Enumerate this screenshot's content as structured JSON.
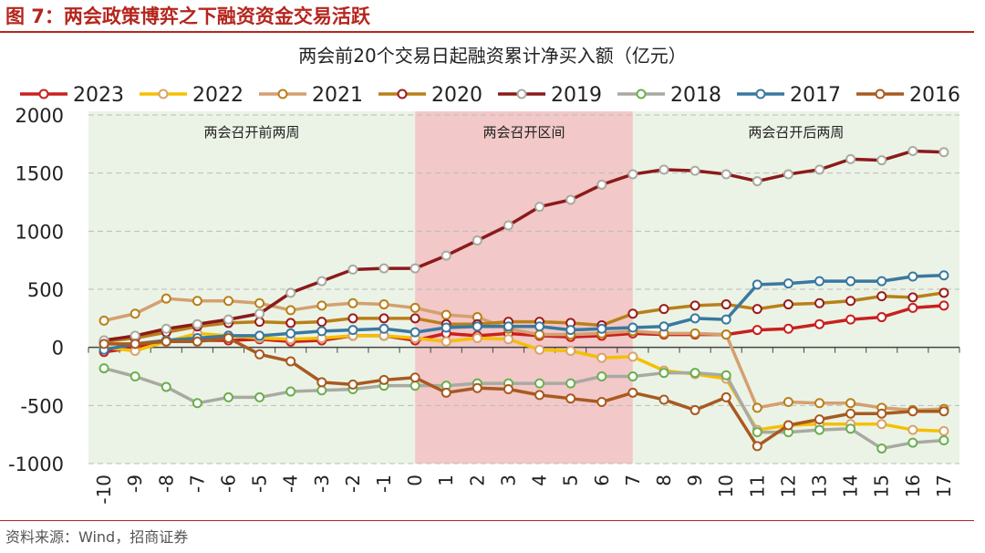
{
  "figure_title": "图 7：两会政策博弈之下融资资金交易活跃",
  "source": "资料来源：Wind，招商证券",
  "chart_data": {
    "type": "line",
    "title": "两会前20个交易日起融资累计净买入额（亿元）",
    "xlabel": "",
    "ylabel": "",
    "x": [
      -10,
      -9,
      -8,
      -7,
      -6,
      -5,
      -4,
      -3,
      -2,
      -1,
      0,
      1,
      2,
      3,
      4,
      5,
      6,
      7,
      8,
      9,
      10,
      11,
      12,
      13,
      14,
      15,
      16,
      17
    ],
    "ylim": [
      -1000,
      2000
    ],
    "yticks": [
      -1000,
      -500,
      0,
      500,
      1000,
      1500,
      2000
    ],
    "grid": true,
    "legend_position": "top",
    "regions": [
      {
        "label": "两会召开前两周",
        "from": -10.5,
        "to": 0,
        "color": "#ebf3e6"
      },
      {
        "label": "两会召开区间",
        "from": 0,
        "to": 7,
        "color": "#f2c8c8"
      },
      {
        "label": "两会召开后两周",
        "from": 7,
        "to": 17.5,
        "color": "#ebf3e6"
      }
    ],
    "series": [
      {
        "name": "2023",
        "color": "#c8201e",
        "marker": "#c8201e",
        "values": [
          -40,
          0,
          50,
          60,
          60,
          70,
          50,
          60,
          100,
          100,
          60,
          120,
          100,
          120,
          100,
          90,
          100,
          120,
          110,
          110,
          110,
          150,
          160,
          200,
          240,
          260,
          340,
          360
        ]
      },
      {
        "name": "2022",
        "color": "#f5c000",
        "marker": "#d9a36a",
        "values": [
          0,
          -30,
          50,
          120,
          100,
          80,
          70,
          80,
          100,
          100,
          80,
          50,
          80,
          70,
          -20,
          -30,
          -90,
          -80,
          -200,
          -230,
          -270,
          -710,
          -670,
          -660,
          -660,
          -660,
          -710,
          -720
        ]
      },
      {
        "name": "2021",
        "color": "#d4a070",
        "marker": "#b8801a",
        "values": [
          230,
          290,
          420,
          400,
          400,
          380,
          320,
          360,
          380,
          370,
          340,
          280,
          260,
          160,
          110,
          110,
          120,
          140,
          120,
          120,
          110,
          -520,
          -470,
          -480,
          -480,
          -520,
          -540,
          -530
        ]
      },
      {
        "name": "2020",
        "color": "#b8801a",
        "marker": "#9a1c1c",
        "values": [
          50,
          80,
          130,
          180,
          210,
          220,
          210,
          220,
          250,
          250,
          250,
          200,
          200,
          220,
          220,
          210,
          190,
          290,
          330,
          360,
          370,
          330,
          370,
          380,
          400,
          440,
          430,
          470
        ]
      },
      {
        "name": "2019",
        "color": "#8b1a1a",
        "marker": "#aaaaa0",
        "values": [
          60,
          100,
          160,
          200,
          240,
          290,
          470,
          570,
          670,
          680,
          680,
          790,
          920,
          1050,
          1210,
          1270,
          1400,
          1490,
          1530,
          1520,
          1490,
          1430,
          1490,
          1530,
          1620,
          1610,
          1690,
          1680
        ]
      },
      {
        "name": "2018",
        "color": "#a8aaa2",
        "marker": "#6ab04c",
        "values": [
          -180,
          -250,
          -340,
          -480,
          -430,
          -430,
          -380,
          -370,
          -360,
          -330,
          -330,
          -330,
          -310,
          -310,
          -310,
          -310,
          -250,
          -250,
          -220,
          -220,
          -240,
          -730,
          -730,
          -710,
          -700,
          -870,
          -820,
          -800
        ]
      },
      {
        "name": "2017",
        "color": "#3a78a0",
        "marker": "#3a78a0",
        "values": [
          -20,
          30,
          60,
          80,
          100,
          100,
          120,
          140,
          150,
          160,
          130,
          170,
          180,
          180,
          180,
          150,
          160,
          170,
          180,
          250,
          240,
          540,
          550,
          570,
          570,
          570,
          610,
          620
        ]
      },
      {
        "name": "2016",
        "color": "#a85a20",
        "marker": "#a85a20",
        "values": [
          30,
          30,
          50,
          50,
          80,
          -60,
          -120,
          -300,
          -320,
          -280,
          -260,
          -390,
          -350,
          -360,
          -410,
          -440,
          -470,
          -390,
          -450,
          -540,
          -430,
          -850,
          -670,
          -620,
          -570,
          -570,
          -550,
          -550
        ]
      }
    ]
  }
}
